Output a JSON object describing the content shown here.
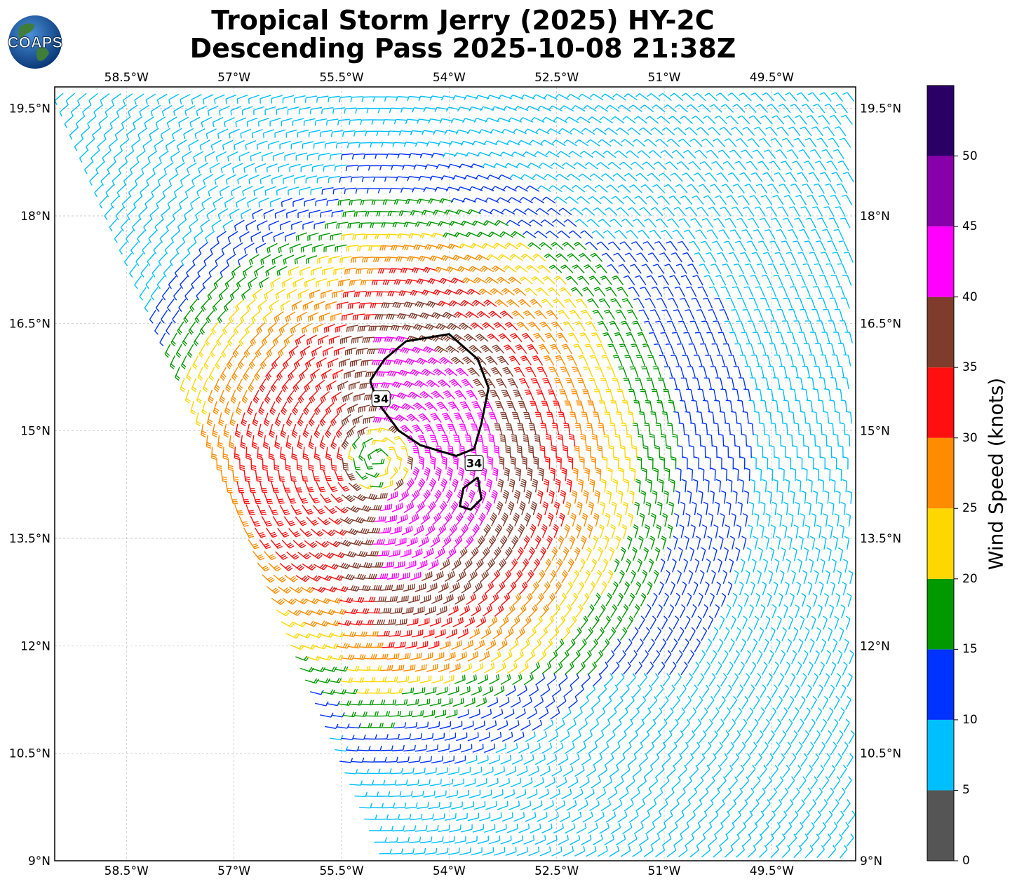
{
  "title": {
    "line1": "Tropical Storm Jerry (2025) HY-2C",
    "line2": "Descending Pass 2025-10-08 21:38Z"
  },
  "logo": {
    "text": "COAPS",
    "icon": "globe-icon"
  },
  "map": {
    "lon_range": [
      -59.5,
      -48.33
    ],
    "lat_range": [
      9.0,
      19.8
    ],
    "lon_ticks": [
      "58.5°W",
      "57°W",
      "55.5°W",
      "54°W",
      "52.5°W",
      "51°W",
      "49.5°W"
    ],
    "lon_tick_values": [
      -58.5,
      -57,
      -55.5,
      -54,
      -52.5,
      -51,
      -49.5
    ],
    "lat_ticks": [
      "9°N",
      "10.5°N",
      "12°N",
      "13.5°N",
      "15°N",
      "16.5°N",
      "18°N",
      "19.5°N"
    ],
    "lat_tick_values": [
      9,
      10.5,
      12,
      13.5,
      15,
      16.5,
      18,
      19.5
    ],
    "grid": true,
    "storm_center": {
      "lon": -55.0,
      "lat": 14.6
    },
    "contour_34kt": {
      "label": "34",
      "main": [
        [
          -55.1,
          15.7
        ],
        [
          -54.9,
          16.0
        ],
        [
          -54.6,
          16.25
        ],
        [
          -54.0,
          16.35
        ],
        [
          -53.6,
          16.0
        ],
        [
          -53.45,
          15.6
        ],
        [
          -53.55,
          15.1
        ],
        [
          -53.65,
          14.75
        ],
        [
          -53.9,
          14.65
        ],
        [
          -54.4,
          14.8
        ],
        [
          -54.7,
          15.0
        ],
        [
          -55.0,
          15.4
        ],
        [
          -55.1,
          15.7
        ]
      ],
      "small": [
        [
          -53.6,
          14.35
        ],
        [
          -53.55,
          14.05
        ],
        [
          -53.7,
          13.9
        ],
        [
          -53.85,
          13.95
        ],
        [
          -53.8,
          14.2
        ],
        [
          -53.6,
          14.35
        ]
      ]
    }
  },
  "colorbar": {
    "title": "Wind Speed (knots)",
    "ticks": [
      "0",
      "5",
      "10",
      "15",
      "20",
      "25",
      "30",
      "35",
      "40",
      "45",
      "50"
    ],
    "bins": [
      {
        "min": 0,
        "max": 5,
        "color": "#555555"
      },
      {
        "min": 5,
        "max": 10,
        "color": "#00bfff"
      },
      {
        "min": 10,
        "max": 15,
        "color": "#0033ff"
      },
      {
        "min": 15,
        "max": 20,
        "color": "#009900"
      },
      {
        "min": 20,
        "max": 25,
        "color": "#ffd700"
      },
      {
        "min": 25,
        "max": 30,
        "color": "#ff8c00"
      },
      {
        "min": 30,
        "max": 35,
        "color": "#ff0f0f"
      },
      {
        "min": 35,
        "max": 40,
        "color": "#7f3b2b"
      },
      {
        "min": 40,
        "max": 45,
        "color": "#ff00ff"
      },
      {
        "min": 45,
        "max": 50,
        "color": "#8800aa"
      },
      {
        "min": 50,
        "max": 55,
        "color": "#2a0066"
      }
    ]
  }
}
